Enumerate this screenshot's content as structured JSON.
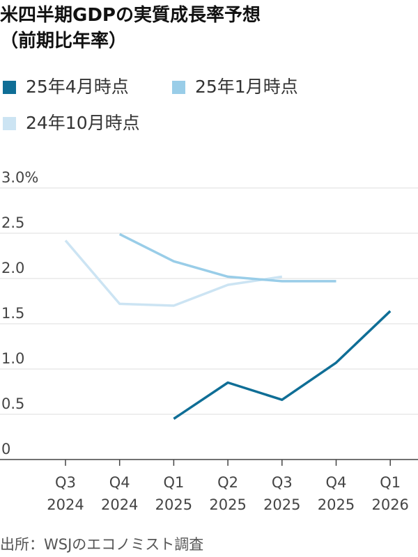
{
  "chart_data": {
    "type": "line",
    "title": "米四半期GDPの実質成長率予想",
    "subtitle": "（前期比年率）",
    "categories": [
      [
        "Q3",
        "2024"
      ],
      [
        "Q4",
        "2024"
      ],
      [
        "Q1",
        "2025"
      ],
      [
        "Q2",
        "2025"
      ],
      [
        "Q3",
        "2025"
      ],
      [
        "Q4",
        "2025"
      ],
      [
        "Q1",
        "2026"
      ]
    ],
    "y_ticks": [
      "3.0%",
      "2.5",
      "2.0",
      "1.5",
      "1.0",
      "0.5",
      "0"
    ],
    "ylim": [
      0,
      3.0
    ],
    "grid": true,
    "legend_position": "top",
    "series": [
      {
        "name": "25年4月時点",
        "color": "#0f6e96",
        "values": [
          null,
          null,
          0.45,
          0.85,
          0.66,
          1.07,
          1.64
        ]
      },
      {
        "name": "25年1月時点",
        "color": "#99cde8",
        "values": [
          null,
          2.49,
          2.19,
          2.02,
          1.97,
          1.97,
          null
        ]
      },
      {
        "name": "24年10月時点",
        "color": "#cce4f3",
        "values": [
          2.42,
          1.72,
          1.7,
          1.93,
          2.02,
          null,
          null
        ]
      }
    ],
    "source": "出所：WSJのエコノミスト調査"
  }
}
